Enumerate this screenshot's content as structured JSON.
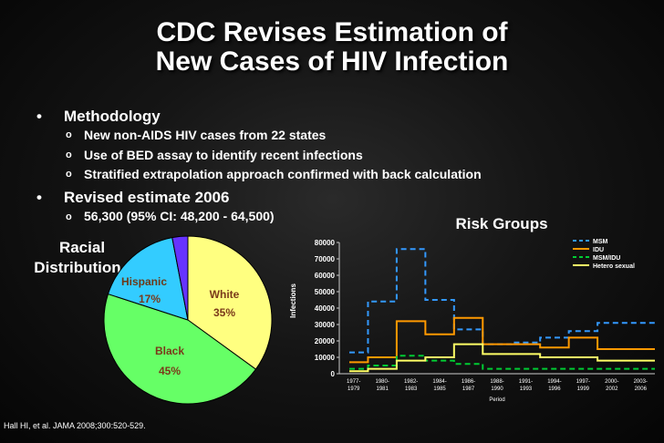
{
  "slide": {
    "title_line1": "CDC Revises Estimation of",
    "title_line2": "New Cases of HIV Infection",
    "bullets": [
      {
        "label": "Methodology",
        "sub": [
          "New non-AIDS HIV cases from 22 states",
          "Use of BED assay to identify recent infections",
          "Stratified extrapolation approach confirmed with back calculation"
        ]
      },
      {
        "label": "Revised estimate 2006",
        "sub": [
          "56,300 (95% CI: 48,200 - 64,500)"
        ]
      }
    ],
    "racial_label_line1": "Racial",
    "racial_label_line2": "Distribution",
    "risk_label": "Risk Groups",
    "citation": "Hall HI, et al.  JAMA 2008;300:520-529.",
    "colors": {
      "background": "#111111",
      "white_slice": "#ffff80",
      "black_slice": "#66ff66",
      "hispanic_slice": "#33ccff",
      "other_slice": "#6633ff",
      "msm": "#3399ff",
      "idu": "#ff9900",
      "msm_idu": "#00cc33",
      "hetero": "#ffff66"
    }
  },
  "chart_data": [
    {
      "type": "pie",
      "categories": [
        "White",
        "Black",
        "Hispanic",
        ""
      ],
      "values": [
        35,
        45,
        17,
        3
      ],
      "value_labels": [
        "35%",
        "45%",
        "17%",
        ""
      ],
      "start": "top, clockwise"
    },
    {
      "type": "line",
      "ylabel": "Infections",
      "xlabel": "Period",
      "ylim": [
        0,
        80000
      ],
      "yticks": [
        "80000",
        "70000",
        "60000",
        "50000",
        "40000",
        "30000",
        "20000",
        "10000",
        "0"
      ],
      "categories": [
        [
          "1977-",
          "1979"
        ],
        [
          "1980-",
          "1981"
        ],
        [
          "1982-",
          "1983"
        ],
        [
          "1984-",
          "1985"
        ],
        [
          "1986-",
          "1987"
        ],
        [
          "1988-",
          "1990"
        ],
        [
          "1991-",
          "1993"
        ],
        [
          "1994-",
          "1996"
        ],
        [
          "1997-",
          "1999"
        ],
        [
          "2000-",
          "2002"
        ],
        [
          "2003-",
          "2006"
        ]
      ],
      "legend": "top-right",
      "step": true,
      "series": [
        {
          "name": "MSM",
          "style": "dashed",
          "values": [
            13000,
            44000,
            76000,
            45000,
            27000,
            18000,
            19000,
            22000,
            26000,
            31000,
            31000
          ]
        },
        {
          "name": "IDU",
          "style": "solid",
          "values": [
            7000,
            10000,
            32000,
            24000,
            34000,
            18000,
            18000,
            16000,
            22000,
            15000,
            15000
          ]
        },
        {
          "name": "MSM/IDU",
          "style": "dashed",
          "values": [
            3000,
            5000,
            11000,
            8000,
            6000,
            3000,
            3000,
            3000,
            3000,
            3000,
            3000
          ]
        },
        {
          "name": "Hetero sexual",
          "style": "solid",
          "values": [
            1500,
            3000,
            8000,
            10000,
            18000,
            12000,
            12000,
            10000,
            10000,
            8000,
            8000
          ]
        }
      ]
    }
  ]
}
